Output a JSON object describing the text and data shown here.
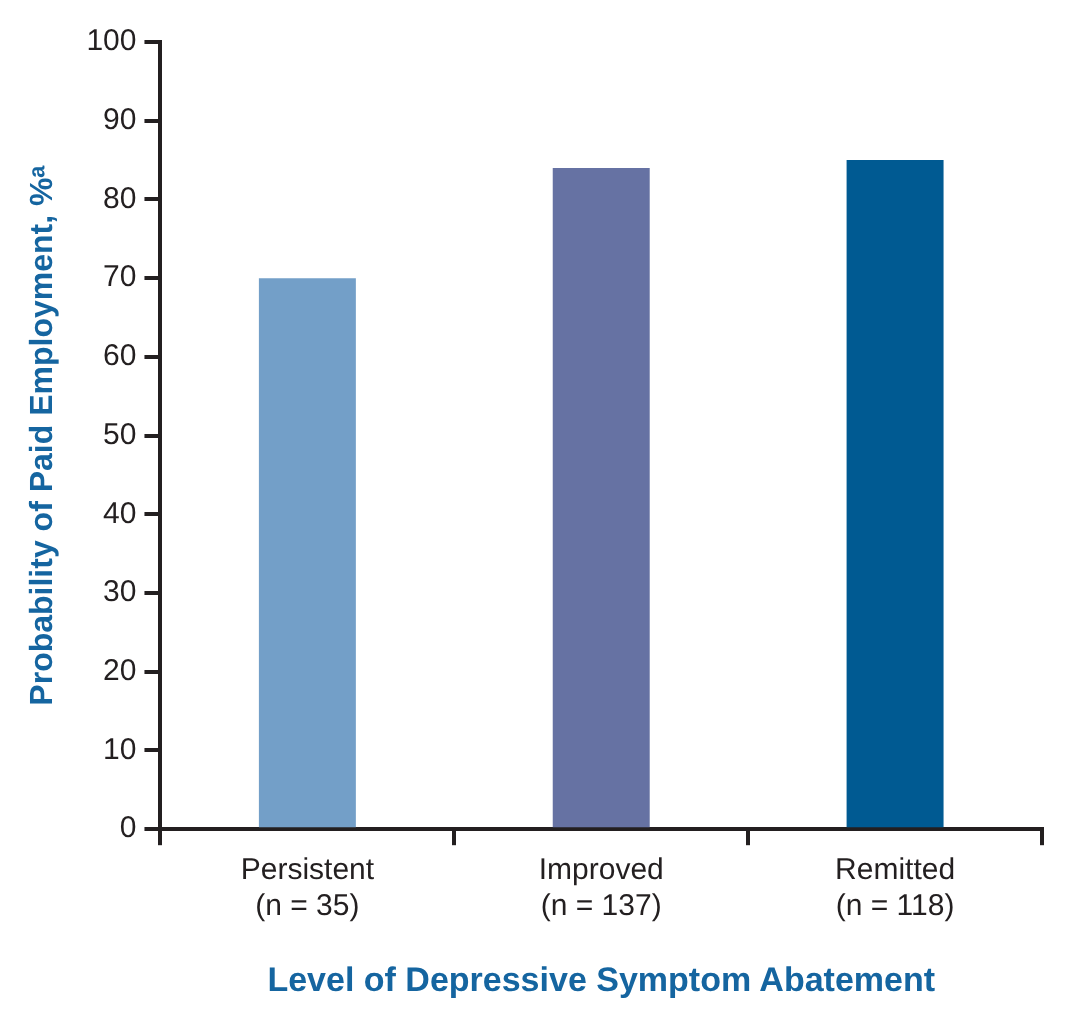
{
  "chart_data": {
    "type": "bar",
    "xlabel": "Level of Depressive Symptom Abatement",
    "ylabel": "Probability of Paid Employment, %ᵃ",
    "categories": [
      "Persistent\n(n = 35)",
      "Improved\n(n = 137)",
      "Remitted\n(n = 118)"
    ],
    "values": [
      70,
      84,
      85
    ],
    "colors": [
      "#739fc8",
      "#6672a3",
      "#005a92"
    ],
    "ylim": [
      0,
      100
    ],
    "yticks": [
      0,
      10,
      20,
      30,
      40,
      50,
      60,
      70,
      80,
      90,
      100
    ],
    "grid": false,
    "legend": false
  }
}
